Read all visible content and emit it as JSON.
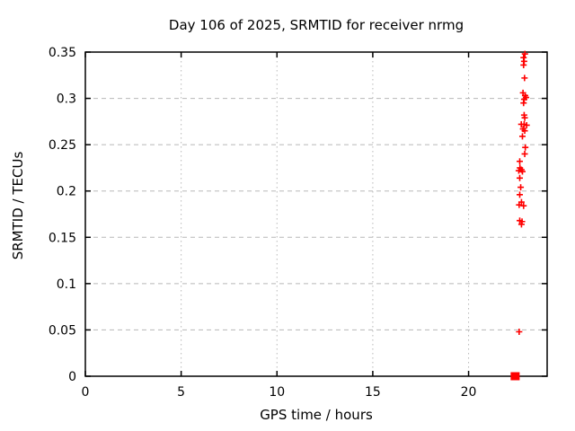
{
  "page": {
    "background": "#ffffff"
  },
  "colors": {
    "marker": "#ff0000",
    "grid": "#b8b8b8",
    "axis": "#000000",
    "text": "#000000",
    "background": "#ffffff"
  },
  "chart_data": {
    "type": "scatter",
    "title": "Day 106 of 2025, SRMTID for receiver nrmg",
    "xlabel": "GPS time / hours",
    "ylabel": "SRMTID / TECUs",
    "xlim": [
      0,
      24.1
    ],
    "ylim": [
      0,
      0.35
    ],
    "grid": true,
    "legend": "none",
    "xticks": {
      "values": [
        0,
        5,
        10,
        15,
        20
      ],
      "labels": [
        "0",
        "5",
        "10",
        "15",
        "20"
      ]
    },
    "yticks": {
      "values": [
        0,
        0.05,
        0.1,
        0.15,
        0.2,
        0.25,
        0.3,
        0.35
      ],
      "labels": [
        "0",
        "0.05",
        "0.1",
        "0.15",
        "0.2",
        "0.25",
        "0.3",
        "0.35"
      ]
    },
    "series": [
      {
        "name": "SRMTID",
        "marker": "plus",
        "color": "#ff0000",
        "points": [
          [
            22.94,
            0.348
          ],
          [
            22.87,
            0.344
          ],
          [
            22.9,
            0.34
          ],
          [
            22.87,
            0.336
          ],
          [
            22.92,
            0.322
          ],
          [
            22.84,
            0.306
          ],
          [
            22.95,
            0.303
          ],
          [
            23.0,
            0.301
          ],
          [
            22.9,
            0.299
          ],
          [
            22.87,
            0.295
          ],
          [
            22.9,
            0.282
          ],
          [
            22.93,
            0.279
          ],
          [
            22.75,
            0.272
          ],
          [
            22.9,
            0.272
          ],
          [
            23.03,
            0.271
          ],
          [
            22.84,
            0.267
          ],
          [
            22.93,
            0.265
          ],
          [
            22.81,
            0.259
          ],
          [
            22.96,
            0.247
          ],
          [
            22.93,
            0.24
          ],
          [
            22.67,
            0.232
          ],
          [
            22.68,
            0.225
          ],
          [
            22.76,
            0.223
          ],
          [
            22.62,
            0.222
          ],
          [
            22.81,
            0.221
          ],
          [
            22.67,
            0.214
          ],
          [
            22.72,
            0.204
          ],
          [
            22.67,
            0.196
          ],
          [
            22.76,
            0.188
          ],
          [
            22.64,
            0.185
          ],
          [
            22.87,
            0.184
          ],
          [
            22.67,
            0.168
          ],
          [
            22.79,
            0.167
          ],
          [
            22.76,
            0.164
          ],
          [
            22.64,
            0.048
          ]
        ]
      },
      {
        "name": "baseline-marker",
        "marker": "filled-square",
        "color": "#ff0000",
        "points": [
          [
            22.43,
            0.0
          ]
        ]
      }
    ]
  }
}
